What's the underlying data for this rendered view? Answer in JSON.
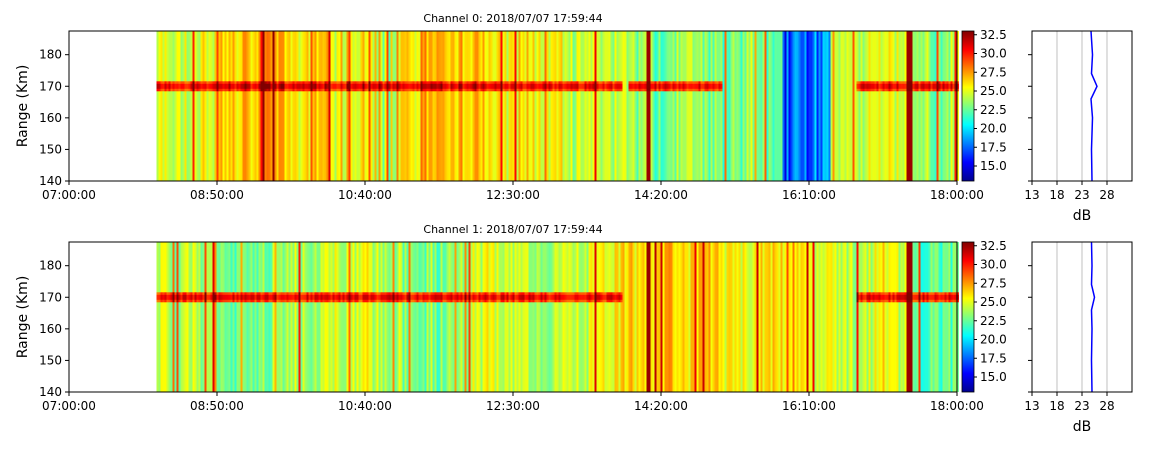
{
  "chart_data": [
    {
      "type": "heatmap",
      "title": "Channel 0: 2018/07/07 17:59:44",
      "ylabel": "Range (Km)",
      "xlabel": "",
      "x_ticks": [
        "07:00:00",
        "08:50:00",
        "10:40:00",
        "12:30:00",
        "14:20:00",
        "16:10:00",
        "18:00:00"
      ],
      "xlim": [
        "07:00:00",
        "18:00:00"
      ],
      "y_ticks": [
        140,
        150,
        160,
        170,
        180
      ],
      "ylim": [
        140,
        187.5
      ],
      "data_start": "08:05:00",
      "colorbar": {
        "ticks": [
          "15.0",
          "17.5",
          "20.0",
          "22.5",
          "25.0",
          "27.5",
          "30.0",
          "32.5"
        ],
        "range": [
          13,
          33
        ]
      },
      "colormap": [
        "#00008f",
        "#0000ff",
        "#00ffff",
        "#ffff00",
        "#ff0000",
        "#800000"
      ],
      "echo_band": {
        "range_km": 170,
        "segments": [
          [
            "08:05:00",
            "13:50:00"
          ],
          [
            "13:55:00",
            "15:05:00"
          ],
          [
            "16:45:00",
            "18:00:00"
          ]
        ]
      },
      "strong_columns": [
        "14:10:00",
        "17:24:00"
      ],
      "profile": {
        "xlabel": "dB",
        "x_ticks": [
          "13",
          "18",
          "23",
          "28"
        ],
        "xlim": [
          13,
          33
        ],
        "gridlines": [
          18,
          23,
          28
        ],
        "line_color": "#0000ff",
        "points": [
          [
            25.0,
            140
          ],
          [
            24.9,
            150
          ],
          [
            25.1,
            160
          ],
          [
            24.8,
            166
          ],
          [
            26.0,
            170
          ],
          [
            24.9,
            174
          ],
          [
            25.1,
            180
          ],
          [
            24.8,
            187.5
          ]
        ]
      }
    },
    {
      "type": "heatmap",
      "title": "Channel 1: 2018/07/07 17:59:44",
      "ylabel": "Range (Km)",
      "xlabel": "",
      "x_ticks": [
        "07:00:00",
        "08:50:00",
        "10:40:00",
        "12:30:00",
        "14:20:00",
        "16:10:00",
        "18:00:00"
      ],
      "xlim": [
        "07:00:00",
        "18:00:00"
      ],
      "y_ticks": [
        140,
        150,
        160,
        170,
        180
      ],
      "ylim": [
        140,
        187.5
      ],
      "data_start": "08:05:00",
      "colorbar": {
        "ticks": [
          "15.0",
          "17.5",
          "20.0",
          "22.5",
          "25.0",
          "27.5",
          "30.0",
          "32.5"
        ],
        "range": [
          13,
          33
        ]
      },
      "colormap": [
        "#00008f",
        "#0000ff",
        "#00ffff",
        "#ffff00",
        "#ff0000",
        "#800000"
      ],
      "echo_band": {
        "range_km": 170,
        "segments": [
          [
            "08:05:00",
            "13:50:00"
          ],
          [
            "16:45:00",
            "18:00:00"
          ]
        ]
      },
      "strong_columns": [
        "14:10:00",
        "17:24:00"
      ],
      "profile": {
        "xlabel": "dB",
        "x_ticks": [
          "13",
          "18",
          "23",
          "28"
        ],
        "xlim": [
          13,
          33
        ],
        "gridlines": [
          18,
          23,
          28
        ],
        "line_color": "#0000ff",
        "points": [
          [
            25.0,
            140
          ],
          [
            24.9,
            150
          ],
          [
            25.0,
            160
          ],
          [
            24.9,
            166
          ],
          [
            25.5,
            170
          ],
          [
            24.9,
            174
          ],
          [
            25.0,
            180
          ],
          [
            24.9,
            187.5
          ]
        ]
      }
    }
  ]
}
